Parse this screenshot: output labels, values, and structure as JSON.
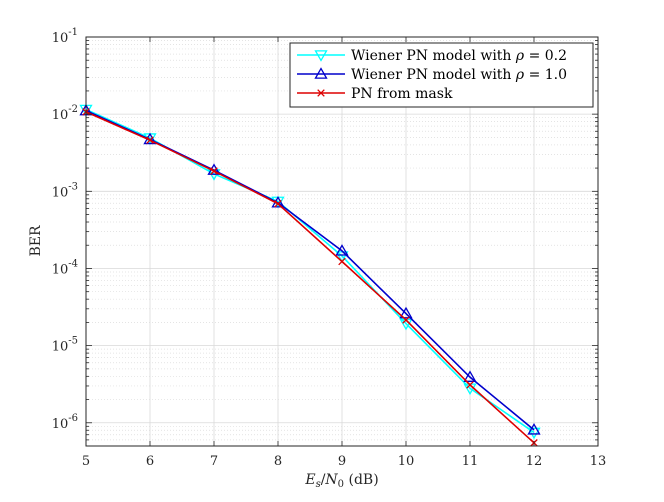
{
  "chart_data": {
    "type": "line",
    "title": "",
    "xlabel": "E_s/N_0 (dB)",
    "xlabel_parts": {
      "E": "E",
      "s": "s",
      "slash": "/",
      "N": "N",
      "zero": "0",
      "unit": " (dB)"
    },
    "ylabel": "BER",
    "xlim": [
      5,
      13
    ],
    "ylim": [
      5e-07,
      0.1
    ],
    "yscale": "log",
    "grid": true,
    "minor_grid": true,
    "legend_position": "top-right",
    "x_ticks": [
      "5",
      "6",
      "7",
      "8",
      "9",
      "10",
      "11",
      "12",
      "13"
    ],
    "y_ticks": [
      {
        "base": "10",
        "exp": "-1",
        "value": 0.1
      },
      {
        "base": "10",
        "exp": "-2",
        "value": 0.01
      },
      {
        "base": "10",
        "exp": "-3",
        "value": 0.001
      },
      {
        "base": "10",
        "exp": "-4",
        "value": 0.0001
      },
      {
        "base": "10",
        "exp": "-5",
        "value": 1e-05
      },
      {
        "base": "10",
        "exp": "-6",
        "value": 1e-06
      }
    ],
    "series": [
      {
        "name": "Wiener PN model with ρ = 0.2",
        "legend_prefix": "Wiener PN model with ",
        "legend_symbol": "ρ",
        "legend_suffix": " = 0.2",
        "color": "#00FFFF",
        "marker": "triangle-down",
        "x": [
          5,
          6,
          7,
          8,
          9,
          10,
          11,
          12
        ],
        "values": [
          0.0115,
          0.0049,
          0.00168,
          0.00074,
          0.000145,
          1.93e-05,
          2.8e-06,
          7.5e-07
        ]
      },
      {
        "name": "Wiener PN model with ρ = 1.0",
        "legend_prefix": "Wiener PN model with ",
        "legend_symbol": "ρ",
        "legend_suffix": " = 1.0",
        "color": "#0000CC",
        "marker": "triangle-up",
        "x": [
          5,
          6,
          7,
          8,
          9,
          10,
          11,
          12
        ],
        "values": [
          0.0111,
          0.0047,
          0.00188,
          0.00071,
          0.000169,
          2.6e-05,
          3.9e-06,
          8.1e-07
        ]
      },
      {
        "name": "PN from mask",
        "legend_prefix": "PN from mask",
        "legend_symbol": "",
        "legend_suffix": "",
        "color": "#DD0000",
        "marker": "x",
        "x": [
          5,
          6,
          7,
          8,
          9,
          10,
          11,
          12
        ],
        "values": [
          0.0107,
          0.0046,
          0.00183,
          0.00069,
          0.000123,
          2.15e-05,
          3.1e-06,
          5.5e-07
        ]
      }
    ]
  }
}
